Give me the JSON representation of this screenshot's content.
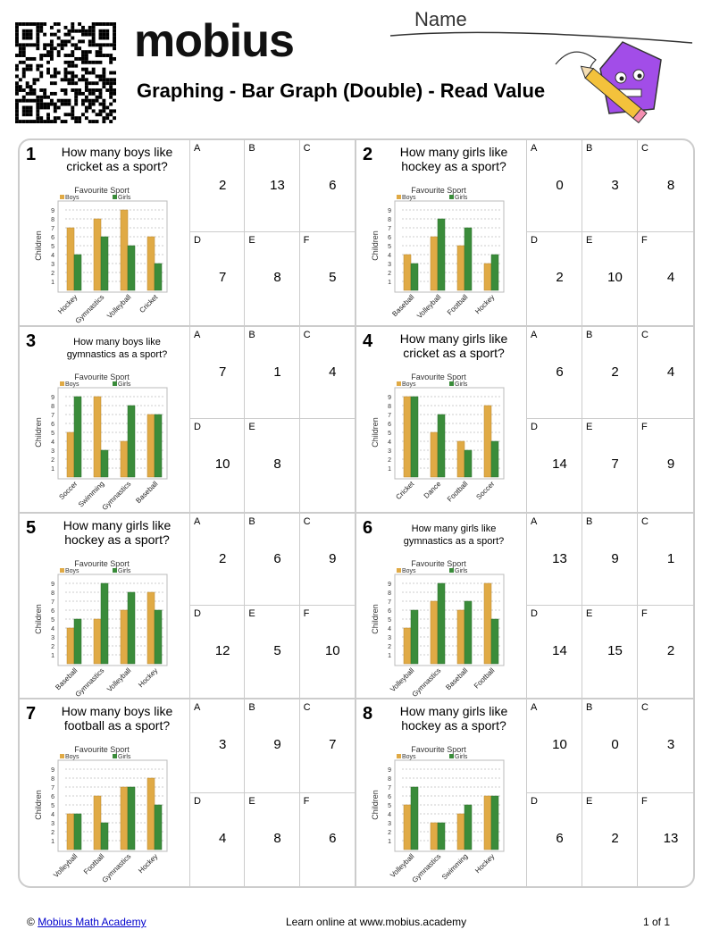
{
  "header": {
    "logo": "mobius",
    "title": "Graphing - Bar Graph (Double) - Read Value",
    "name_label": "Name"
  },
  "colors": {
    "boys": "#e0aa45",
    "girls": "#3a8c3a",
    "border": "#cccccc"
  },
  "chart_common": {
    "title": "Favourite Sport",
    "legend": [
      "Boys",
      "Girls"
    ],
    "ylabel": "Children",
    "yticks": [
      1,
      2,
      3,
      4,
      5,
      6,
      7,
      8,
      9
    ],
    "ylim": [
      0,
      10
    ]
  },
  "problems": [
    {
      "number": "1",
      "question": "How many boys like cricket as a sport?",
      "chart_data": {
        "type": "bar",
        "categories": [
          "Hockey",
          "Gymnastics",
          "Volleyball",
          "Cricket"
        ],
        "series": [
          {
            "name": "Boys",
            "values": [
              7,
              8,
              9,
              6
            ]
          },
          {
            "name": "Girls",
            "values": [
              4,
              6,
              5,
              3
            ]
          }
        ]
      },
      "answers": [
        {
          "letter": "A",
          "value": "2"
        },
        {
          "letter": "B",
          "value": "13"
        },
        {
          "letter": "C",
          "value": "6"
        },
        {
          "letter": "D",
          "value": "7"
        },
        {
          "letter": "E",
          "value": "8"
        },
        {
          "letter": "F",
          "value": "5"
        }
      ]
    },
    {
      "number": "2",
      "question": "How many girls like hockey as a sport?",
      "chart_data": {
        "type": "bar",
        "categories": [
          "Baseball",
          "Volleyball",
          "Football",
          "Hockey"
        ],
        "series": [
          {
            "name": "Boys",
            "values": [
              4,
              6,
              5,
              3
            ]
          },
          {
            "name": "Girls",
            "values": [
              3,
              8,
              7,
              4
            ]
          }
        ]
      },
      "answers": [
        {
          "letter": "A",
          "value": "0"
        },
        {
          "letter": "B",
          "value": "3"
        },
        {
          "letter": "C",
          "value": "8"
        },
        {
          "letter": "D",
          "value": "2"
        },
        {
          "letter": "E",
          "value": "10"
        },
        {
          "letter": "F",
          "value": "4"
        }
      ]
    },
    {
      "number": "3",
      "question": "How many boys like gymnastics as a sport?",
      "chart_data": {
        "type": "bar",
        "categories": [
          "Soccer",
          "Swimming",
          "Gymnastics",
          "Baseball"
        ],
        "series": [
          {
            "name": "Boys",
            "values": [
              5,
              9,
              4,
              7
            ]
          },
          {
            "name": "Girls",
            "values": [
              9,
              3,
              8,
              7
            ]
          }
        ]
      },
      "answers": [
        {
          "letter": "A",
          "value": "7"
        },
        {
          "letter": "B",
          "value": "1"
        },
        {
          "letter": "C",
          "value": "4"
        },
        {
          "letter": "D",
          "value": "10"
        },
        {
          "letter": "E",
          "value": "8"
        },
        {
          "letter": "",
          "value": ""
        }
      ]
    },
    {
      "number": "4",
      "question": "How many girls like cricket as a sport?",
      "chart_data": {
        "type": "bar",
        "categories": [
          "Cricket",
          "Dance",
          "Football",
          "Soccer"
        ],
        "series": [
          {
            "name": "Boys",
            "values": [
              9,
              5,
              4,
              8
            ]
          },
          {
            "name": "Girls",
            "values": [
              9,
              7,
              3,
              4
            ]
          }
        ]
      },
      "answers": [
        {
          "letter": "A",
          "value": "6"
        },
        {
          "letter": "B",
          "value": "2"
        },
        {
          "letter": "C",
          "value": "4"
        },
        {
          "letter": "D",
          "value": "14"
        },
        {
          "letter": "E",
          "value": "7"
        },
        {
          "letter": "F",
          "value": "9"
        }
      ]
    },
    {
      "number": "5",
      "question": "How many girls like hockey as a sport?",
      "chart_data": {
        "type": "bar",
        "categories": [
          "Baseball",
          "Gymnastics",
          "Volleyball",
          "Hockey"
        ],
        "series": [
          {
            "name": "Boys",
            "values": [
              4,
              5,
              6,
              8
            ]
          },
          {
            "name": "Girls",
            "values": [
              5,
              9,
              8,
              6
            ]
          }
        ]
      },
      "answers": [
        {
          "letter": "A",
          "value": "2"
        },
        {
          "letter": "B",
          "value": "6"
        },
        {
          "letter": "C",
          "value": "9"
        },
        {
          "letter": "D",
          "value": "12"
        },
        {
          "letter": "E",
          "value": "5"
        },
        {
          "letter": "F",
          "value": "10"
        }
      ]
    },
    {
      "number": "6",
      "question": "How many girls like gymnastics as a sport?",
      "chart_data": {
        "type": "bar",
        "categories": [
          "Volleyball",
          "Gymnastics",
          "Baseball",
          "Football"
        ],
        "series": [
          {
            "name": "Boys",
            "values": [
              4,
              7,
              6,
              9
            ]
          },
          {
            "name": "Girls",
            "values": [
              6,
              9,
              7,
              5
            ]
          }
        ]
      },
      "answers": [
        {
          "letter": "A",
          "value": "13"
        },
        {
          "letter": "B",
          "value": "9"
        },
        {
          "letter": "C",
          "value": "1"
        },
        {
          "letter": "D",
          "value": "14"
        },
        {
          "letter": "E",
          "value": "15"
        },
        {
          "letter": "F",
          "value": "2"
        }
      ]
    },
    {
      "number": "7",
      "question": "How many boys like football as a sport?",
      "chart_data": {
        "type": "bar",
        "categories": [
          "Volleyball",
          "Football",
          "Gymnastics",
          "Hockey"
        ],
        "series": [
          {
            "name": "Boys",
            "values": [
              4,
              6,
              7,
              8
            ]
          },
          {
            "name": "Girls",
            "values": [
              4,
              3,
              7,
              5
            ]
          }
        ]
      },
      "answers": [
        {
          "letter": "A",
          "value": "3"
        },
        {
          "letter": "B",
          "value": "9"
        },
        {
          "letter": "C",
          "value": "7"
        },
        {
          "letter": "D",
          "value": "4"
        },
        {
          "letter": "E",
          "value": "8"
        },
        {
          "letter": "F",
          "value": "6"
        }
      ]
    },
    {
      "number": "8",
      "question": "How many girls like hockey as a sport?",
      "chart_data": {
        "type": "bar",
        "categories": [
          "Volleyball",
          "Gymnastics",
          "Swimming",
          "Hockey"
        ],
        "series": [
          {
            "name": "Boys",
            "values": [
              5,
              3,
              4,
              6
            ]
          },
          {
            "name": "Girls",
            "values": [
              7,
              3,
              5,
              6
            ]
          }
        ]
      },
      "answers": [
        {
          "letter": "A",
          "value": "10"
        },
        {
          "letter": "B",
          "value": "0"
        },
        {
          "letter": "C",
          "value": "3"
        },
        {
          "letter": "D",
          "value": "6"
        },
        {
          "letter": "E",
          "value": "2"
        },
        {
          "letter": "F",
          "value": "13"
        }
      ]
    }
  ],
  "footer": {
    "copyright": "©",
    "link": "Mobius Math Academy",
    "middle": "Learn online at www.mobius.academy",
    "page": "1 of 1"
  }
}
